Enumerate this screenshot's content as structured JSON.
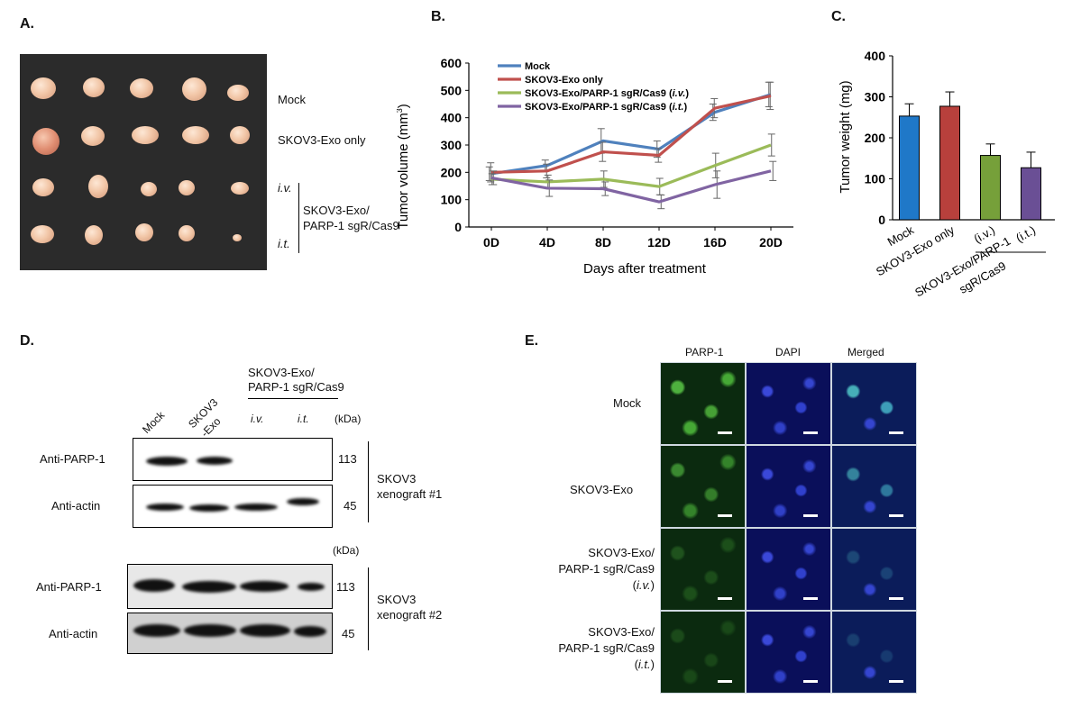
{
  "panels": {
    "a": "A.",
    "b": "B.",
    "c": "C.",
    "d": "D.",
    "e": "E."
  },
  "panel_a": {
    "labels": {
      "mock": "Mock",
      "exo_only": "SKOV3-Exo only",
      "iv": "i.v.",
      "it": "i.t.",
      "treated_line1": "SKOV3-Exo/",
      "treated_line2": "PARP-1 sgR/Cas9"
    }
  },
  "chart_data": [
    {
      "type": "line",
      "xlabel": "Days after treatment",
      "ylabel": "Tumor volume (mm",
      "ylabel_sup": "3",
      "ylabel_close": ")",
      "categories": [
        "0D",
        "4D",
        "8D",
        "12D",
        "16D",
        "20D"
      ],
      "ylim": [
        0,
        600
      ],
      "yticks": [
        0,
        100,
        200,
        300,
        400,
        500,
        600
      ],
      "legend_position": "top-left",
      "series": [
        {
          "name": "Mock",
          "color": "#4f81bd",
          "values": [
            195,
            225,
            315,
            285,
            420,
            485
          ],
          "errors": [
            25,
            20,
            45,
            30,
            30,
            45
          ]
        },
        {
          "name": "SKOV3-Exo only",
          "color": "#c0504d",
          "values": [
            200,
            205,
            275,
            262,
            435,
            480
          ],
          "errors": [
            35,
            25,
            35,
            25,
            35,
            50
          ]
        },
        {
          "name": "SKOV3-Exo/PARP-1 sgR/Cas9 (i.v.)",
          "name_main": "SKOV3-Exo/PARP-1 sgR/Cas9 (",
          "name_italic": "i.v.",
          "name_end": ")",
          "color": "#9bbb59",
          "values": [
            175,
            165,
            175,
            148,
            225,
            300
          ],
          "errors": [
            20,
            25,
            30,
            30,
            45,
            40
          ]
        },
        {
          "name": "SKOV3-Exo/PARP-1 sgR/Cas9 (i.t.)",
          "name_main": "SKOV3-Exo/PARP-1 sgR/Cas9 (",
          "name_italic": "i.t.",
          "name_end": ")",
          "color": "#8064a2",
          "values": [
            180,
            142,
            140,
            92,
            155,
            205
          ],
          "errors": [
            25,
            30,
            25,
            25,
            50,
            35
          ]
        }
      ]
    },
    {
      "type": "bar",
      "ylabel": "Tumor weight (mg)",
      "categories": [
        "Mock",
        "SKOV3-Exo only",
        "(i.v.)",
        "(i.t.)"
      ],
      "ylim": [
        0,
        400
      ],
      "yticks": [
        0,
        100,
        200,
        300,
        400
      ],
      "group_label_line1": "SKOV3-Exo/PARP-1",
      "group_label_line2": "sgR/Cas9",
      "colors": [
        "#1f78c8",
        "#b8403c",
        "#76a03a",
        "#6a4f95"
      ],
      "values": [
        253,
        277,
        157,
        127
      ],
      "errors": [
        30,
        35,
        28,
        38
      ]
    }
  ],
  "panel_d": {
    "header_line1": "SKOV3-Exo/",
    "header_line2": "PARP-1 sgR/Cas9",
    "lanes": [
      "Mock",
      "SKOV3",
      "-Exo",
      "i.v.",
      "i.t."
    ],
    "kda": "(kDa)",
    "kda2": "(kDa)",
    "row1_label": "Anti-PARP-1",
    "row2_label": "Anti-actin",
    "row3_label": "Anti-PARP-1",
    "row4_label": "Anti-actin",
    "mw_113": "113",
    "mw_45": "45",
    "mw_113b": "113",
    "mw_45b": "45",
    "xeno1_line1": "SKOV3",
    "xeno1_line2": "xenograft #1",
    "xeno2_line1": "SKOV3",
    "xeno2_line2": "xenograft #2"
  },
  "panel_e": {
    "columns": [
      "PARP-1",
      "DAPI",
      "Merged"
    ],
    "row_mock": "Mock",
    "row_exo": "SKOV3-Exo",
    "row_iv_line1": "SKOV3-Exo/",
    "row_iv_line2": "PARP-1 sgR/Cas9",
    "row_iv_line3": "i.v.",
    "row_it_line1": "SKOV3-Exo/",
    "row_it_line2": "PARP-1 sgR/Cas9",
    "row_it_line3": "i.t.",
    "paren_open": "(",
    "paren_close": ")"
  }
}
